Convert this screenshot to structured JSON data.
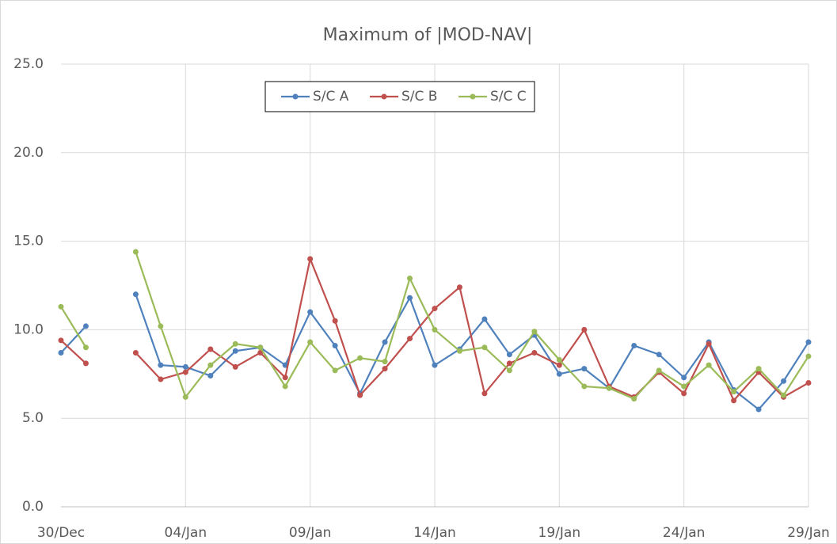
{
  "chart_data": {
    "type": "line",
    "title": "Maximum of |MOD-NAV|",
    "categories": [
      "30/Dec",
      null,
      null,
      null,
      null,
      "04/Jan",
      null,
      null,
      null,
      null,
      "09/Jan",
      null,
      null,
      null,
      null,
      "14/Jan",
      null,
      null,
      null,
      null,
      "19/Jan",
      null,
      null,
      null,
      null,
      "24/Jan",
      null,
      null,
      null,
      null,
      "29/Jan"
    ],
    "series": [
      {
        "name": "S/C A",
        "color": "#4f81bd",
        "values": [
          8.7,
          10.2,
          null,
          12.0,
          8.0,
          7.9,
          7.4,
          8.8,
          9.0,
          8.0,
          11.0,
          9.1,
          6.4,
          9.3,
          11.8,
          8.0,
          8.9,
          10.6,
          8.6,
          9.7,
          7.5,
          7.8,
          6.7,
          9.1,
          8.6,
          7.3,
          9.3,
          6.6,
          5.5,
          7.1,
          9.3
        ]
      },
      {
        "name": "S/C B",
        "color": "#c0504d",
        "values": [
          9.4,
          8.1,
          null,
          8.7,
          7.2,
          7.6,
          8.9,
          7.9,
          8.7,
          7.3,
          14.0,
          10.5,
          6.3,
          7.8,
          9.5,
          11.2,
          12.4,
          6.4,
          8.1,
          8.7,
          8.0,
          10.0,
          6.8,
          6.2,
          7.6,
          6.4,
          9.2,
          6.0,
          7.6,
          6.2,
          7.0
        ]
      },
      {
        "name": "S/C C",
        "color": "#9bbb59",
        "values": [
          11.3,
          9.0,
          null,
          14.4,
          10.2,
          6.2,
          8.0,
          9.2,
          9.0,
          6.8,
          9.3,
          7.7,
          8.4,
          8.2,
          12.9,
          10.0,
          8.8,
          9.0,
          7.7,
          9.9,
          8.3,
          6.8,
          6.7,
          6.1,
          7.7,
          6.8,
          8.0,
          6.5,
          7.8,
          6.3,
          8.5
        ]
      }
    ],
    "ylim": [
      0,
      25
    ],
    "yticks": [
      {
        "value": 0,
        "label": "0.0"
      },
      {
        "value": 5,
        "label": "5.0"
      },
      {
        "value": 10,
        "label": "10.0"
      },
      {
        "value": 15,
        "label": "15.0"
      },
      {
        "value": 20,
        "label": "20.0"
      },
      {
        "value": 25,
        "label": "25.0"
      }
    ],
    "grid": true,
    "legend": "top"
  }
}
